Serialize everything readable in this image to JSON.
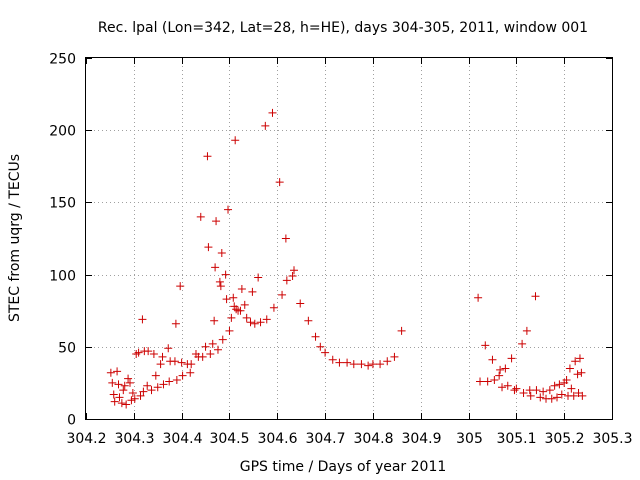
{
  "chart_data": {
    "type": "scatter",
    "title": "Rec. lpal (Lon=342, Lat=28, h=HE), days 304-305, 2011, window 001",
    "xlabel": "GPS time / Days of year 2011",
    "ylabel": "STEC from uqrg / TECUs",
    "xlim": [
      304.2,
      305.3
    ],
    "ylim": [
      0,
      250
    ],
    "xticks": [
      304.2,
      304.3,
      304.4,
      304.5,
      304.6,
      304.7,
      304.8,
      304.9,
      305,
      305.1,
      305.2,
      305.3
    ],
    "xtick_labels": [
      "304.2",
      "304.3",
      "304.4",
      "304.5",
      "304.6",
      "304.7",
      "304.8",
      "304.9",
      "305",
      "305.1",
      "305.2",
      "305.3"
    ],
    "yticks": [
      0,
      50,
      100,
      150,
      200,
      250
    ],
    "ytick_labels": [
      "0",
      "50",
      "100",
      "150",
      "200",
      "250"
    ],
    "grid": true,
    "marker": "+",
    "marker_color": "#cc0000",
    "series": [
      {
        "name": "STEC",
        "points": [
          [
            304.252,
            32
          ],
          [
            304.255,
            25
          ],
          [
            304.258,
            17
          ],
          [
            304.26,
            12
          ],
          [
            304.265,
            33
          ],
          [
            304.268,
            24
          ],
          [
            304.27,
            15
          ],
          [
            304.275,
            11
          ],
          [
            304.278,
            20
          ],
          [
            304.281,
            23
          ],
          [
            304.284,
            10
          ],
          [
            304.288,
            28
          ],
          [
            304.292,
            25
          ],
          [
            304.295,
            13
          ],
          [
            304.298,
            18
          ],
          [
            304.302,
            14
          ],
          [
            304.305,
            45
          ],
          [
            304.31,
            46
          ],
          [
            304.314,
            16
          ],
          [
            304.318,
            69
          ],
          [
            304.32,
            19
          ],
          [
            304.322,
            47
          ],
          [
            304.328,
            23
          ],
          [
            304.33,
            47
          ],
          [
            304.337,
            20
          ],
          [
            304.342,
            45
          ],
          [
            304.346,
            30
          ],
          [
            304.35,
            22
          ],
          [
            304.356,
            38
          ],
          [
            304.36,
            43
          ],
          [
            304.362,
            24
          ],
          [
            304.372,
            49
          ],
          [
            304.374,
            26
          ],
          [
            304.376,
            40
          ],
          [
            304.386,
            40
          ],
          [
            304.388,
            66
          ],
          [
            304.39,
            27
          ],
          [
            304.397,
            92
          ],
          [
            304.4,
            39
          ],
          [
            304.402,
            30
          ],
          [
            304.412,
            38
          ],
          [
            304.418,
            32
          ],
          [
            304.42,
            38
          ],
          [
            304.43,
            45
          ],
          [
            304.435,
            43
          ],
          [
            304.44,
            140
          ],
          [
            304.444,
            43
          ],
          [
            304.45,
            50
          ],
          [
            304.454,
            182
          ],
          [
            304.456,
            119
          ],
          [
            304.46,
            45
          ],
          [
            304.465,
            52
          ],
          [
            304.468,
            68
          ],
          [
            304.47,
            105
          ],
          [
            304.472,
            137
          ],
          [
            304.476,
            48
          ],
          [
            304.48,
            95
          ],
          [
            304.482,
            92
          ],
          [
            304.484,
            115
          ],
          [
            304.486,
            55
          ],
          [
            304.492,
            100
          ],
          [
            304.494,
            83
          ],
          [
            304.497,
            145
          ],
          [
            304.5,
            61
          ],
          [
            304.504,
            70
          ],
          [
            304.508,
            84
          ],
          [
            304.51,
            78
          ],
          [
            304.512,
            193
          ],
          [
            304.514,
            76
          ],
          [
            304.518,
            75
          ],
          [
            304.523,
            75
          ],
          [
            304.526,
            90
          ],
          [
            304.532,
            79
          ],
          [
            304.536,
            70
          ],
          [
            304.544,
            67
          ],
          [
            304.548,
            88
          ],
          [
            304.553,
            66
          ],
          [
            304.56,
            98
          ],
          [
            304.565,
            67
          ],
          [
            304.575,
            203
          ],
          [
            304.578,
            69
          ],
          [
            304.59,
            212
          ],
          [
            304.593,
            77
          ],
          [
            304.605,
            164
          ],
          [
            304.61,
            86
          ],
          [
            304.618,
            125
          ],
          [
            304.62,
            96
          ],
          [
            304.632,
            99
          ],
          [
            304.635,
            103
          ],
          [
            304.648,
            80
          ],
          [
            304.665,
            68
          ],
          [
            304.68,
            57
          ],
          [
            304.69,
            50
          ],
          [
            304.7,
            46
          ],
          [
            304.716,
            41
          ],
          [
            304.73,
            39
          ],
          [
            304.746,
            39
          ],
          [
            304.76,
            38
          ],
          [
            304.776,
            38
          ],
          [
            304.79,
            37
          ],
          [
            304.8,
            38
          ],
          [
            304.815,
            38
          ],
          [
            304.83,
            40
          ],
          [
            304.845,
            43
          ],
          [
            304.86,
            61
          ],
          [
            305.02,
            84
          ],
          [
            305.024,
            26
          ],
          [
            305.035,
            51
          ],
          [
            305.04,
            26
          ],
          [
            305.05,
            41
          ],
          [
            305.054,
            27
          ],
          [
            305.064,
            30
          ],
          [
            305.066,
            34
          ],
          [
            305.07,
            22
          ],
          [
            305.077,
            35
          ],
          [
            305.082,
            23
          ],
          [
            305.09,
            42
          ],
          [
            305.096,
            20
          ],
          [
            305.1,
            21
          ],
          [
            305.112,
            52
          ],
          [
            305.115,
            18
          ],
          [
            305.122,
            61
          ],
          [
            305.128,
            20
          ],
          [
            305.13,
            16
          ],
          [
            305.14,
            85
          ],
          [
            305.142,
            20
          ],
          [
            305.15,
            15
          ],
          [
            305.156,
            19
          ],
          [
            305.162,
            14
          ],
          [
            305.17,
            20
          ],
          [
            305.174,
            14
          ],
          [
            305.18,
            23
          ],
          [
            305.185,
            15
          ],
          [
            305.19,
            24
          ],
          [
            305.195,
            17
          ],
          [
            305.2,
            25
          ],
          [
            305.205,
            27
          ],
          [
            305.208,
            16
          ],
          [
            305.212,
            35
          ],
          [
            305.215,
            21
          ],
          [
            305.22,
            16
          ],
          [
            305.223,
            40
          ],
          [
            305.228,
            31
          ],
          [
            305.23,
            18
          ],
          [
            305.233,
            42
          ],
          [
            305.236,
            32
          ],
          [
            305.238,
            16
          ]
        ]
      }
    ]
  }
}
